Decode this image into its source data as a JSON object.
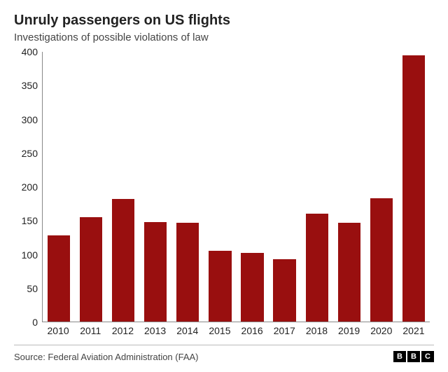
{
  "chart": {
    "type": "bar",
    "title": "Unruly passengers on US flights",
    "title_fontsize": 20,
    "subtitle": "Investigations of possible violations of law",
    "subtitle_fontsize": 15,
    "categories": [
      "2010",
      "2011",
      "2012",
      "2013",
      "2014",
      "2015",
      "2016",
      "2017",
      "2018",
      "2019",
      "2020",
      "2021"
    ],
    "values": [
      128,
      155,
      182,
      148,
      147,
      105,
      102,
      92,
      160,
      146,
      183,
      395
    ],
    "bar_color": "#990f0f",
    "background_color": "#ffffff",
    "ylim": [
      0,
      400
    ],
    "ytick_step": 50,
    "yticks": [
      0,
      50,
      100,
      150,
      200,
      250,
      300,
      350,
      400
    ],
    "axis_color": "#888888",
    "label_fontsize": 14,
    "bar_width": 0.7
  },
  "footer": {
    "source": "Source: Federal Aviation Administration (FAA)",
    "logo_letters": [
      "B",
      "B",
      "C"
    ],
    "divider_color": "#bbbbbb"
  }
}
